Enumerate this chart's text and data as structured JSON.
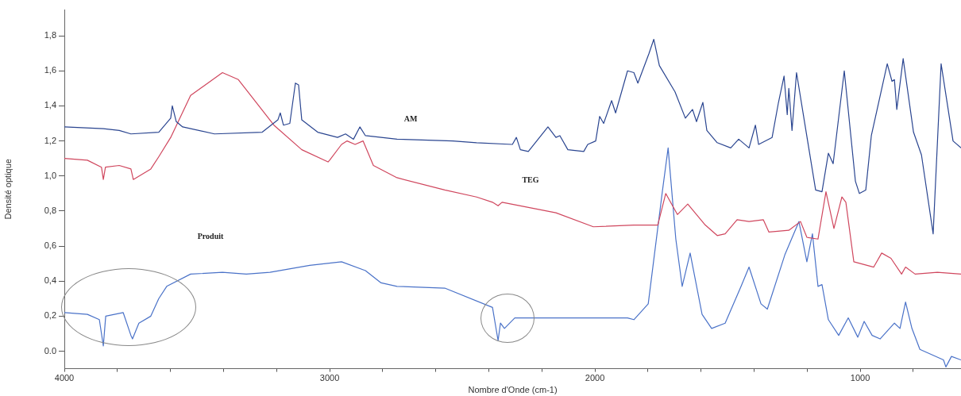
{
  "chart_data": {
    "type": "line",
    "xlabel": "Nombre d'Onde (cm-1)",
    "ylabel": "Densité optique",
    "xlim": [
      4000,
      620
    ],
    "ylim": [
      -0.1,
      1.95
    ],
    "xticks": [
      4000,
      {
        "value": 3800,
        "label": null
      },
      {
        "value": 3600,
        "label": null
      },
      {
        "value": 3400,
        "label": null
      },
      {
        "value": 3200,
        "label": null
      },
      3000,
      {
        "value": 2800,
        "label": null
      },
      {
        "value": 2600,
        "label": null
      },
      {
        "value": 2400,
        "label": null
      },
      {
        "value": 2200,
        "label": null
      },
      2000,
      {
        "value": 1800,
        "label": null
      },
      {
        "value": 1600,
        "label": null
      },
      {
        "value": 1400,
        "label": null
      },
      {
        "value": 1200,
        "label": null
      },
      1000,
      {
        "value": 800,
        "label": null
      }
    ],
    "yticks": [
      {
        "value": 0,
        "label": "0.0"
      },
      {
        "value": 0.2,
        "label": "0,2"
      },
      {
        "value": 0.4,
        "label": "0,4"
      },
      {
        "value": 0.6,
        "label": "0,6"
      },
      {
        "value": 0.8,
        "label": "0,8"
      },
      {
        "value": 1.0,
        "label": "1,0"
      },
      {
        "value": 1.2,
        "label": "1,2"
      },
      {
        "value": 1.4,
        "label": "1,4"
      },
      {
        "value": 1.6,
        "label": "1,6"
      },
      {
        "value": 1.8,
        "label": "1,8"
      }
    ],
    "grid": false,
    "legend": false,
    "annotations": [
      "AM",
      "TEG",
      "Produit"
    ],
    "series": [
      {
        "color": "#2a4590",
        "x": [
          4000,
          3853,
          3793,
          3749,
          3644,
          3599,
          3593,
          3578,
          3554,
          3434,
          3254,
          3195,
          3186,
          3174,
          3150,
          3129,
          3117,
          3105,
          3045,
          2970,
          2940,
          2910,
          2886,
          2865,
          2746,
          2536,
          2446,
          2311,
          2296,
          2281,
          2251,
          2177,
          2147,
          2132,
          2102,
          2042,
          2027,
          1997,
          1982,
          1967,
          1937,
          1922,
          1877,
          1853,
          1838,
          1796,
          1778,
          1757,
          1698,
          1659,
          1632,
          1617,
          1593,
          1578,
          1539,
          1488,
          1458,
          1419,
          1395,
          1383,
          1332,
          1308,
          1287,
          1275,
          1269,
          1257,
          1240,
          1210,
          1168,
          1144,
          1120,
          1102,
          1060,
          1018,
          1003,
          979,
          958,
          898,
          880,
          871,
          862,
          838,
          799,
          769,
          725,
          695,
          650,
          620
        ],
        "values": [
          1.28,
          1.27,
          1.26,
          1.24,
          1.25,
          1.33,
          1.4,
          1.31,
          1.28,
          1.24,
          1.25,
          1.32,
          1.36,
          1.29,
          1.3,
          1.53,
          1.52,
          1.32,
          1.25,
          1.22,
          1.24,
          1.21,
          1.28,
          1.23,
          1.21,
          1.2,
          1.19,
          1.18,
          1.22,
          1.15,
          1.14,
          1.28,
          1.22,
          1.23,
          1.15,
          1.14,
          1.18,
          1.2,
          1.34,
          1.3,
          1.43,
          1.36,
          1.6,
          1.59,
          1.53,
          1.7,
          1.78,
          1.63,
          1.48,
          1.33,
          1.38,
          1.31,
          1.42,
          1.26,
          1.19,
          1.16,
          1.21,
          1.16,
          1.29,
          1.18,
          1.22,
          1.42,
          1.57,
          1.35,
          1.5,
          1.26,
          1.59,
          1.31,
          0.92,
          0.91,
          1.13,
          1.07,
          1.6,
          0.97,
          0.9,
          0.92,
          1.23,
          1.64,
          1.54,
          1.55,
          1.38,
          1.67,
          1.25,
          1.12,
          0.67,
          1.64,
          1.2,
          1.16
        ]
      },
      {
        "color": "#d0475e",
        "x": [
          4000,
          3913,
          3860,
          3853,
          3845,
          3793,
          3749,
          3740,
          3674,
          3644,
          3599,
          3524,
          3404,
          3344,
          3210,
          3105,
          3006,
          3000,
          2955,
          2934,
          2904,
          2874,
          2835,
          2746,
          2566,
          2446,
          2386,
          2365,
          2350,
          2147,
          2006,
          1853,
          1763,
          1733,
          1689,
          1650,
          1584,
          1539,
          1509,
          1464,
          1419,
          1365,
          1344,
          1269,
          1225,
          1201,
          1159,
          1129,
          1099,
          1069,
          1054,
          1024,
          949,
          919,
          884,
          844,
          829,
          793,
          709,
          620
        ],
        "values": [
          1.1,
          1.09,
          1.05,
          0.98,
          1.05,
          1.06,
          1.04,
          0.98,
          1.04,
          1.11,
          1.22,
          1.46,
          1.59,
          1.55,
          1.29,
          1.15,
          1.08,
          1.09,
          1.18,
          1.2,
          1.18,
          1.2,
          1.06,
          0.99,
          0.92,
          0.88,
          0.85,
          0.83,
          0.85,
          0.79,
          0.71,
          0.72,
          0.72,
          0.9,
          0.78,
          0.84,
          0.72,
          0.66,
          0.67,
          0.75,
          0.74,
          0.75,
          0.68,
          0.69,
          0.74,
          0.65,
          0.64,
          0.91,
          0.7,
          0.88,
          0.85,
          0.51,
          0.48,
          0.56,
          0.53,
          0.44,
          0.48,
          0.44,
          0.45,
          0.44
        ]
      },
      {
        "color": "#4a72c8",
        "x": [
          4000,
          3913,
          3868,
          3853,
          3844,
          3778,
          3749,
          3743,
          3719,
          3674,
          3644,
          3614,
          3524,
          3404,
          3314,
          3225,
          3075,
          2955,
          2865,
          2806,
          2746,
          2566,
          2386,
          2365,
          2356,
          2341,
          2302,
          2027,
          1877,
          1853,
          1799,
          1745,
          1724,
          1695,
          1671,
          1641,
          1596,
          1560,
          1509,
          1449,
          1419,
          1374,
          1350,
          1284,
          1231,
          1201,
          1180,
          1159,
          1144,
          1120,
          1081,
          1045,
          1009,
          985,
          955,
          925,
          871,
          850,
          829,
          805,
          775,
          686,
          677,
          656,
          620
        ],
        "values": [
          0.22,
          0.21,
          0.18,
          0.03,
          0.2,
          0.22,
          0.09,
          0.07,
          0.16,
          0.2,
          0.3,
          0.37,
          0.44,
          0.45,
          0.44,
          0.45,
          0.49,
          0.51,
          0.46,
          0.39,
          0.37,
          0.36,
          0.25,
          0.06,
          0.16,
          0.13,
          0.19,
          0.19,
          0.19,
          0.18,
          0.27,
          0.92,
          1.16,
          0.64,
          0.37,
          0.56,
          0.21,
          0.13,
          0.16,
          0.37,
          0.48,
          0.27,
          0.24,
          0.55,
          0.74,
          0.51,
          0.67,
          0.37,
          0.38,
          0.18,
          0.09,
          0.19,
          0.08,
          0.17,
          0.09,
          0.07,
          0.16,
          0.13,
          0.28,
          0.13,
          0.01,
          -0.05,
          -0.09,
          -0.03,
          -0.05
        ]
      }
    ]
  }
}
